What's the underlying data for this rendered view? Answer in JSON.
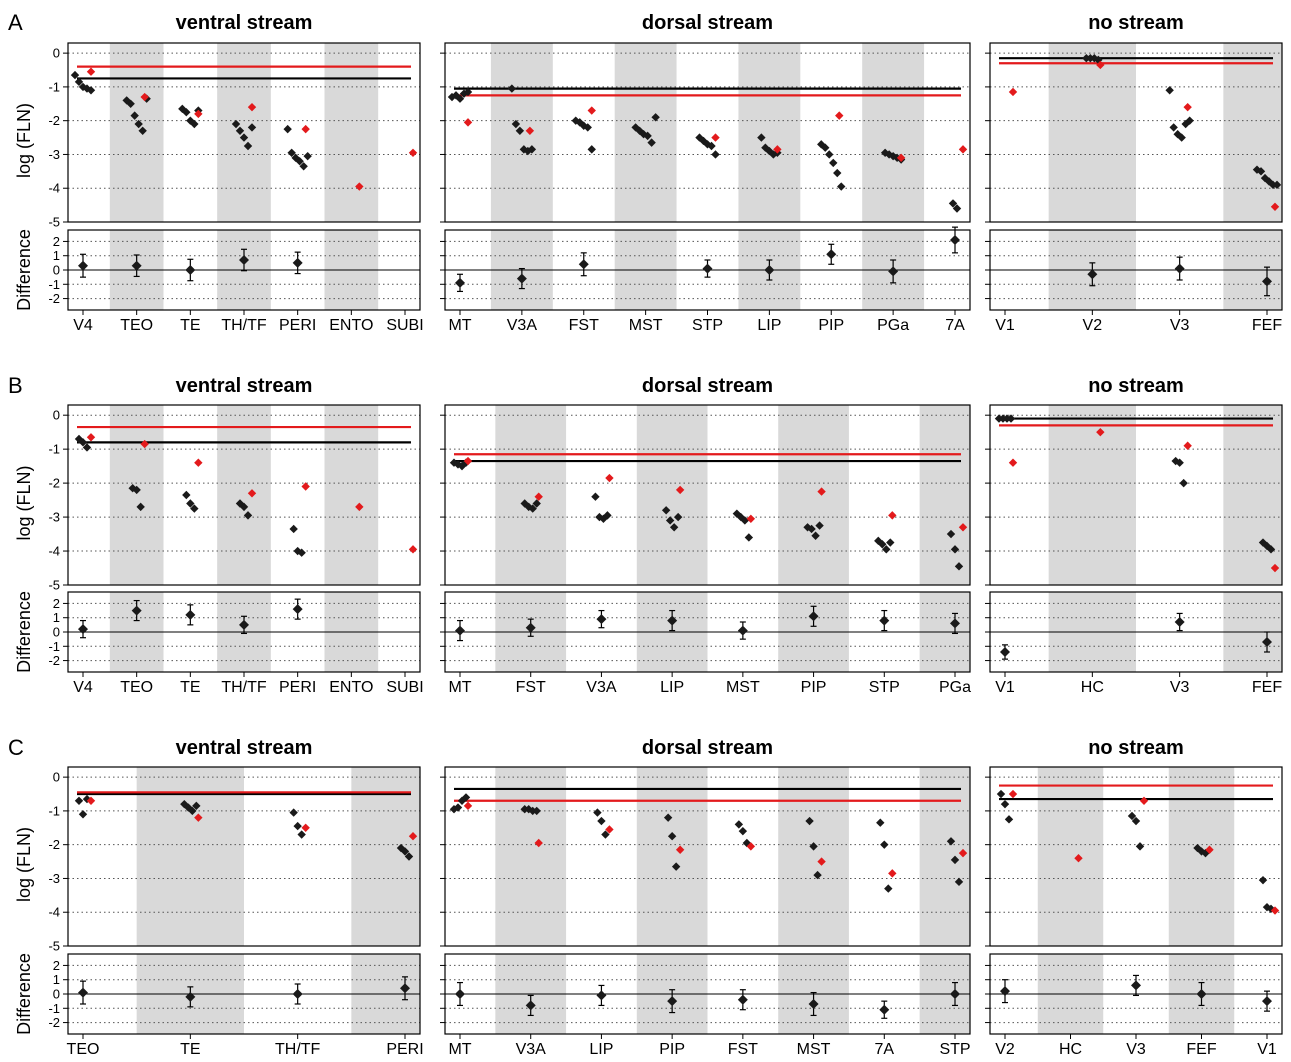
{
  "colors": {
    "highlight": "#e31a1c",
    "marker": "#1a1a1a",
    "band": "#d9d9d9"
  },
  "panel_labels": [
    "A",
    "B",
    "C"
  ],
  "chart_data": [
    {
      "type": "scatter",
      "panel": "A",
      "ylabel_top": "log (FLN)",
      "ylabel_bottom": "Difference",
      "ylim_top": [
        -5,
        0.3
      ],
      "ylim_bottom": [
        -2.8,
        2.8
      ],
      "yticks_top": [
        0,
        -1,
        -2,
        -3,
        -4,
        -5
      ],
      "yticks_bottom": [
        2,
        1,
        0,
        -1,
        -2
      ],
      "groups": [
        {
          "title": "ventral stream",
          "categories": [
            "V4",
            "TEO",
            "TE",
            "TH/TF",
            "PERI",
            "ENTO",
            "SUBI"
          ],
          "shaded": [
            false,
            true,
            false,
            true,
            false,
            true,
            false
          ],
          "black": [
            [
              -0.65,
              -0.85,
              -1.0,
              -1.05,
              -1.1
            ],
            [
              -1.4,
              -1.5,
              -1.85,
              -2.1,
              -2.3,
              -1.35
            ],
            [
              -1.65,
              -1.75,
              -2.0,
              -2.1,
              -1.7
            ],
            [
              -2.1,
              -2.3,
              -2.5,
              -2.75,
              -2.2
            ],
            [
              -2.25,
              -2.95,
              -3.1,
              -3.2,
              -3.35,
              -3.05
            ],
            [],
            []
          ],
          "red": [
            [
              -0.55
            ],
            [
              -1.3
            ],
            [
              -1.8
            ],
            [
              -1.6
            ],
            [
              -2.25
            ],
            [
              -3.95
            ],
            [
              -2.95
            ]
          ],
          "hline_black": -0.75,
          "hline_red": -0.4,
          "diff": [
            [
              0.3,
              0.8
            ],
            [
              0.3,
              0.75
            ],
            [
              0.0,
              0.75
            ],
            [
              0.7,
              0.75
            ],
            [
              0.5,
              0.75
            ],
            null,
            null
          ]
        },
        {
          "title": "dorsal stream",
          "categories": [
            "MT",
            "V3A",
            "FST",
            "MST",
            "STP",
            "LIP",
            "PIP",
            "PGa",
            "7A"
          ],
          "shaded": [
            false,
            true,
            false,
            true,
            false,
            true,
            false,
            true,
            false
          ],
          "black": [
            [
              -1.3,
              -1.25,
              -1.35,
              -1.2,
              -1.15
            ],
            [
              -1.05,
              -2.1,
              -2.3,
              -2.85,
              -2.9,
              -2.85
            ],
            [
              -2.0,
              -2.05,
              -2.15,
              -2.2,
              -2.85
            ],
            [
              -2.2,
              -2.3,
              -2.4,
              -2.45,
              -2.65,
              -1.9
            ],
            [
              -2.5,
              -2.6,
              -2.7,
              -2.75,
              -3.0
            ],
            [
              -2.5,
              -2.8,
              -2.9,
              -3.0,
              -2.95
            ],
            [
              -2.7,
              -2.8,
              -3.0,
              -3.25,
              -3.55,
              -3.95
            ],
            [
              -2.95,
              -3.0,
              -3.05,
              -3.1,
              -3.15
            ],
            [
              -4.45,
              -4.6
            ]
          ],
          "red": [
            [
              -2.05
            ],
            [
              -2.3
            ],
            [
              -1.7
            ],
            [],
            [
              -2.5
            ],
            [
              -2.85
            ],
            [
              -1.85
            ],
            [
              -3.1
            ],
            [
              -2.85
            ]
          ],
          "hline_black": -1.05,
          "hline_red": -1.25,
          "diff": [
            [
              -0.9,
              0.6
            ],
            [
              -0.6,
              0.7
            ],
            [
              0.4,
              0.8
            ],
            null,
            [
              0.1,
              0.6
            ],
            [
              0.0,
              0.7
            ],
            [
              1.1,
              0.7
            ],
            [
              -0.1,
              0.8
            ],
            [
              2.1,
              0.9
            ]
          ]
        },
        {
          "title": "no stream",
          "categories": [
            "V1",
            "V2",
            "V3",
            "FEF"
          ],
          "shaded": [
            false,
            true,
            false,
            true
          ],
          "black": [
            [],
            [
              -0.15,
              -0.15,
              -0.15,
              -0.2
            ],
            [
              -1.1,
              -2.2,
              -2.4,
              -2.5,
              -2.1,
              -2.0
            ],
            [
              -3.45,
              -3.5,
              -3.7,
              -3.8,
              -3.9,
              -3.9
            ]
          ],
          "red": [
            [
              -1.15
            ],
            [
              -0.35
            ],
            [
              -1.6
            ],
            [
              -4.55
            ]
          ],
          "hline_black": -0.15,
          "hline_red": -0.3,
          "diff": [
            null,
            [
              -0.3,
              0.8
            ],
            [
              0.1,
              0.8
            ],
            [
              -0.8,
              1.0
            ]
          ]
        }
      ]
    },
    {
      "type": "scatter",
      "panel": "B",
      "ylabel_top": "log (FLN)",
      "ylabel_bottom": "Difference",
      "ylim_top": [
        -5,
        0.3
      ],
      "ylim_bottom": [
        -2.8,
        2.8
      ],
      "yticks_top": [
        0,
        -1,
        -2,
        -3,
        -4,
        -5
      ],
      "yticks_bottom": [
        2,
        1,
        0,
        -1,
        -2
      ],
      "groups": [
        {
          "title": "ventral stream",
          "categories": [
            "V4",
            "TEO",
            "TE",
            "TH/TF",
            "PERI",
            "ENTO",
            "SUBI"
          ],
          "shaded": [
            false,
            true,
            false,
            true,
            false,
            true,
            false
          ],
          "black": [
            [
              -0.7,
              -0.8,
              -0.95
            ],
            [
              -2.15,
              -2.2,
              -2.7
            ],
            [
              -2.35,
              -2.6,
              -2.75
            ],
            [
              -2.6,
              -2.7,
              -2.95
            ],
            [
              -3.35,
              -4.0,
              -4.05
            ],
            [],
            []
          ],
          "red": [
            [
              -0.65
            ],
            [
              -0.85
            ],
            [
              -1.4
            ],
            [
              -2.3
            ],
            [
              -2.1
            ],
            [
              -2.7
            ],
            [
              -3.95
            ]
          ],
          "hline_black": -0.8,
          "hline_red": -0.35,
          "diff": [
            [
              0.2,
              0.6
            ],
            [
              1.5,
              0.7
            ],
            [
              1.2,
              0.7
            ],
            [
              0.5,
              0.6
            ],
            [
              1.6,
              0.7
            ],
            null,
            null
          ]
        },
        {
          "title": "dorsal stream",
          "categories": [
            "MT",
            "FST",
            "V3A",
            "LIP",
            "MST",
            "PIP",
            "STP",
            "PGa"
          ],
          "shaded": [
            false,
            true,
            false,
            true,
            false,
            true,
            false,
            true
          ],
          "black": [
            [
              -1.4,
              -1.45,
              -1.5,
              -1.4
            ],
            [
              -2.6,
              -2.7,
              -2.75,
              -2.6
            ],
            [
              -2.4,
              -3.0,
              -3.05,
              -2.95
            ],
            [
              -2.8,
              -3.1,
              -3.3,
              -3.0
            ],
            [
              -2.9,
              -3.0,
              -3.1,
              -3.6
            ],
            [
              -3.3,
              -3.35,
              -3.55,
              -3.25
            ],
            [
              -3.7,
              -3.8,
              -3.95,
              -3.75
            ],
            [
              -3.5,
              -3.95,
              -4.45
            ]
          ],
          "red": [
            [
              -1.35
            ],
            [
              -2.4
            ],
            [
              -1.85
            ],
            [
              -2.2
            ],
            [
              -3.05
            ],
            [
              -2.25
            ],
            [
              -2.95
            ],
            [
              -3.3
            ]
          ],
          "hline_black": -1.35,
          "hline_red": -1.15,
          "diff": [
            [
              0.1,
              0.7
            ],
            [
              0.3,
              0.6
            ],
            [
              0.9,
              0.6
            ],
            [
              0.8,
              0.7
            ],
            [
              0.1,
              0.6
            ],
            [
              1.1,
              0.7
            ],
            [
              0.8,
              0.7
            ],
            [
              0.6,
              0.7
            ]
          ]
        },
        {
          "title": "no stream",
          "categories": [
            "V1",
            "HC",
            "V3",
            "FEF"
          ],
          "shaded": [
            false,
            true,
            false,
            true
          ],
          "black": [
            [
              -0.1,
              -0.1,
              -0.1,
              -0.1
            ],
            [],
            [
              -1.35,
              -1.4,
              -2.0
            ],
            [
              -3.75,
              -3.85,
              -3.95
            ]
          ],
          "red": [
            [
              -1.4
            ],
            [
              -0.5
            ],
            [
              -0.9
            ],
            [
              -4.5
            ]
          ],
          "hline_black": -0.1,
          "hline_red": -0.3,
          "diff": [
            [
              -1.4,
              0.5
            ],
            null,
            [
              0.7,
              0.6
            ],
            [
              -0.7,
              0.7
            ]
          ]
        }
      ]
    },
    {
      "type": "scatter",
      "panel": "C",
      "ylabel_top": "log (FLN)",
      "ylabel_bottom": "Difference",
      "ylim_top": [
        -5,
        0.3
      ],
      "ylim_bottom": [
        -2.8,
        2.8
      ],
      "yticks_top": [
        0,
        -1,
        -2,
        -3,
        -4,
        -5
      ],
      "yticks_bottom": [
        2,
        1,
        0,
        -1,
        -2
      ],
      "groups": [
        {
          "title": "ventral stream",
          "categories": [
            "TEO",
            "TE",
            "TH/TF",
            "PERI"
          ],
          "shaded": [
            false,
            true,
            false,
            true
          ],
          "black": [
            [
              -0.7,
              -1.1,
              -0.65
            ],
            [
              -0.8,
              -0.9,
              -1.0,
              -0.85
            ],
            [
              -1.05,
              -1.45,
              -1.7
            ],
            [
              -2.1,
              -2.2,
              -2.35
            ]
          ],
          "red": [
            [
              -0.7
            ],
            [
              -1.2
            ],
            [
              -1.5
            ],
            [
              -1.75
            ]
          ],
          "hline_black": -0.5,
          "hline_red": -0.45,
          "diff": [
            [
              0.1,
              0.8
            ],
            [
              -0.2,
              0.7
            ],
            [
              0.0,
              0.7
            ],
            [
              0.4,
              0.8
            ]
          ]
        },
        {
          "title": "dorsal stream",
          "categories": [
            "MT",
            "V3A",
            "LIP",
            "PIP",
            "FST",
            "MST",
            "7A",
            "STP"
          ],
          "shaded": [
            false,
            true,
            false,
            true,
            false,
            true,
            false,
            true
          ],
          "black": [
            [
              -0.95,
              -0.9,
              -0.7,
              -0.6
            ],
            [
              -0.95,
              -0.95,
              -1.0,
              -1.0
            ],
            [
              -1.05,
              -1.3,
              -1.7
            ],
            [
              -1.2,
              -1.75,
              -2.65
            ],
            [
              -1.4,
              -1.6,
              -1.95
            ],
            [
              -1.3,
              -2.05,
              -2.9
            ],
            [
              -1.35,
              -2.0,
              -3.3
            ],
            [
              -1.9,
              -2.45,
              -3.1
            ]
          ],
          "red": [
            [
              -0.85
            ],
            [
              -1.95
            ],
            [
              -1.55
            ],
            [
              -2.15
            ],
            [
              -2.05
            ],
            [
              -2.5
            ],
            [
              -2.85
            ],
            [
              -2.25
            ]
          ],
          "hline_black": -0.35,
          "hline_red": -0.7,
          "diff": [
            [
              0.0,
              0.8
            ],
            [
              -0.8,
              0.7
            ],
            [
              -0.1,
              0.7
            ],
            [
              -0.5,
              0.8
            ],
            [
              -0.4,
              0.7
            ],
            [
              -0.7,
              0.8
            ],
            [
              -1.1,
              0.6
            ],
            [
              0.0,
              0.8
            ]
          ]
        },
        {
          "title": "no stream",
          "categories": [
            "V2",
            "HC",
            "V3",
            "FEF",
            "V1"
          ],
          "shaded": [
            false,
            true,
            false,
            true,
            false
          ],
          "black": [
            [
              -0.5,
              -0.8,
              -1.25
            ],
            [],
            [
              -1.15,
              -1.3,
              -2.05
            ],
            [
              -2.1,
              -2.2,
              -2.25
            ],
            [
              -3.05,
              -3.85,
              -3.9
            ]
          ],
          "red": [
            [
              -0.5
            ],
            [
              -2.4
            ],
            [
              -0.7
            ],
            [
              -2.15
            ],
            [
              -3.95
            ]
          ],
          "hline_black": -0.65,
          "hline_red": -0.25,
          "diff": [
            [
              0.2,
              0.8
            ],
            null,
            [
              0.6,
              0.7
            ],
            [
              0.0,
              0.8
            ],
            [
              -0.5,
              0.7
            ]
          ]
        }
      ]
    }
  ]
}
